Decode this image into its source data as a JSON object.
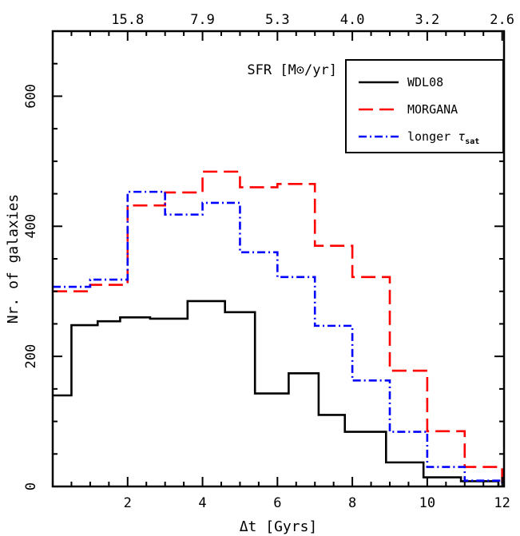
{
  "chart_data": {
    "type": "line",
    "subtype": "step-histogram",
    "xlabel": "Δt [Gyrs]",
    "ylabel": "Nr. of galaxies",
    "top_axis_label": "SFR [M⊙/yr]",
    "xlim": [
      0,
      12.05
    ],
    "ylim": [
      0,
      700
    ],
    "x_ticks": [
      2,
      4,
      6,
      8,
      10,
      12
    ],
    "y_ticks": [
      0,
      200,
      400,
      600
    ],
    "top_ticks": [
      {
        "x": 2,
        "label": "15.8"
      },
      {
        "x": 4,
        "label": "7.9"
      },
      {
        "x": 6,
        "label": "5.3"
      },
      {
        "x": 8,
        "label": "4.0"
      },
      {
        "x": 10,
        "label": "3.2"
      },
      {
        "x": 12,
        "label": "2.6"
      }
    ],
    "grid": false,
    "legend_position": "top-right",
    "series": [
      {
        "name": "WDL08",
        "color": "#000000",
        "dash": "solid",
        "edges": [
          0,
          0.5,
          1.2,
          1.8,
          2.6,
          3.6,
          4.6,
          5.4,
          6.3,
          7.1,
          7.8,
          8.9,
          9.9,
          10.9,
          11.9
        ],
        "values": [
          140,
          248,
          254,
          260,
          258,
          285,
          268,
          143,
          174,
          110,
          84,
          37,
          14,
          8
        ]
      },
      {
        "name": "MORGANA",
        "color": "#ff0000",
        "dash": "long-dash",
        "edges": [
          0,
          1.0,
          2.0,
          3.0,
          4.0,
          5.0,
          6.0,
          7.0,
          8.0,
          9.0,
          10.0,
          11.0,
          12.0
        ],
        "values": [
          300,
          310,
          432,
          452,
          484,
          460,
          465,
          370,
          322,
          178,
          85,
          30
        ]
      },
      {
        "name": "longer τ_sat",
        "color": "#0000ff",
        "dash": "dash-dot",
        "edges": [
          0,
          1.0,
          2.0,
          3.0,
          4.0,
          5.0,
          6.0,
          7.0,
          8.0,
          9.0,
          10.0,
          11.0,
          12.0
        ],
        "values": [
          307,
          318,
          453,
          418,
          436,
          360,
          322,
          247,
          163,
          84,
          30,
          9
        ]
      }
    ]
  }
}
